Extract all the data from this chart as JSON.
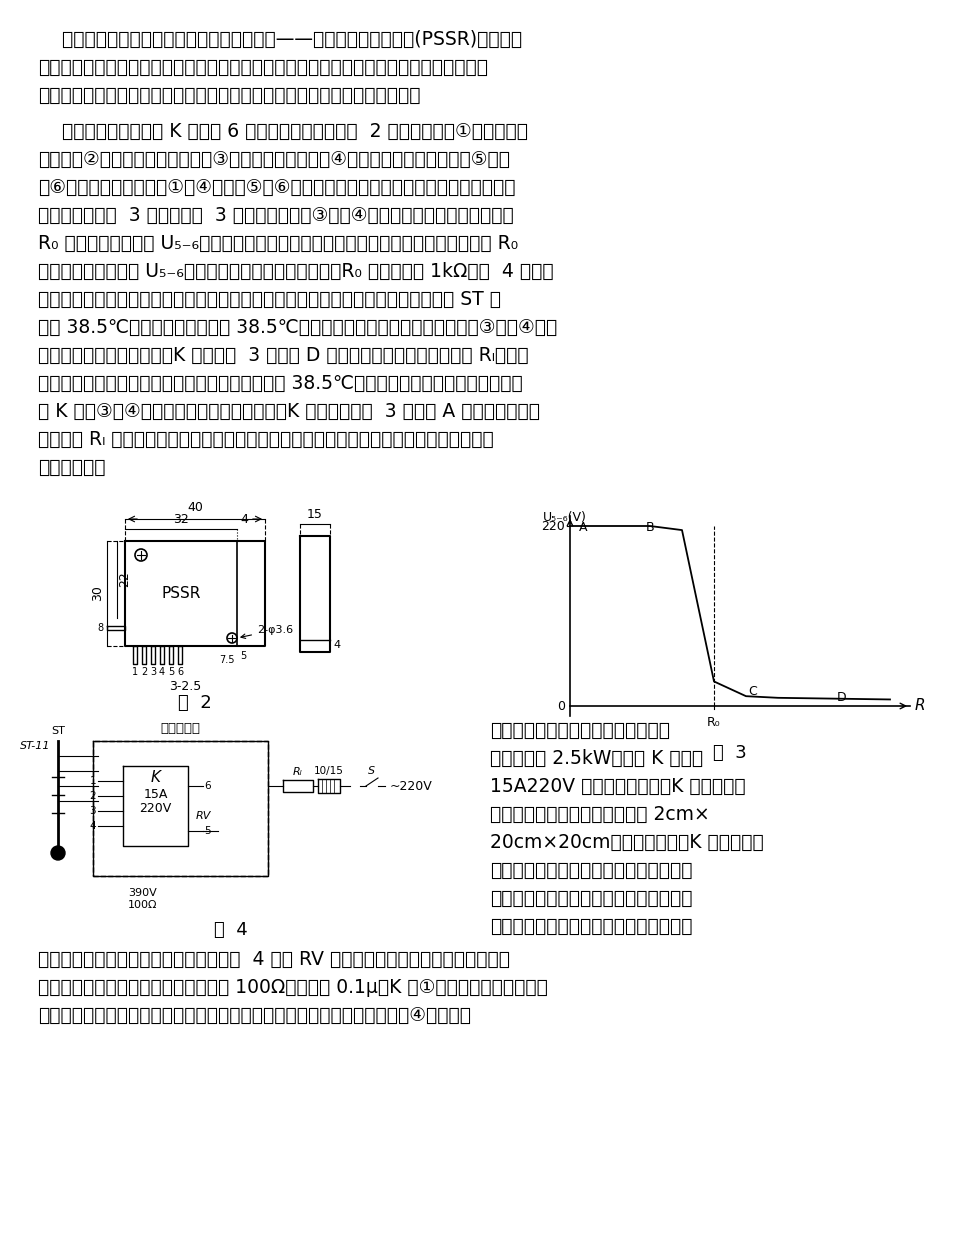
{
  "background_color": "#ffffff",
  "text_color": "#000000",
  "paragraphs": [
    "    该恒温控制器由于采用了一个新型电子元件——交流参数固态继电器(PSSR)，使得电路大为简化，但电路性能不错。该控制器动作灵敏、切换速度高，与之配套的电接点水银温度计的接点不容易老化、安装更换简单。这种恒温控制器适宜用在孵化箱中。",
    "    交流参数固态继电器 K 是一种 6 端固体元件，外型如图  2 所示。图中第①脚是有源驱动端，第②脚是负功率驱动端，第③脚是无源驱动端，第④脚是控制端的公共端，第⑤脚、第⑥脚是输出开关端。第①～④脚与第⑤、⑥脚之间相互电隔离。交流参数固态继电器的典型控制特性如图  3 所示。从图  3 可以看出，当第③、第④脚外接的无源元件的电阻小于 R₀ 时，输出端的电压 U₅₋₆等于电源电压，相当于输出开关断开；当外接电阻阻值大于 R₀时，输出开关端压降 U₅₋₆等于零，相当于输出开关接通。R₀ 的典型值约 1kΩ。图  4 是恒温控制器使用时的连线图，以孵鸡为例，恒温控制过程如下：通常将电接点水银温度计 ST 预置在 38.5℃，当孵箱内温度低于 38.5℃时，水银电接点是断开的，相当于第③、第④脚之间的外接电阻阻值无穷大，K 工作在图  3 曲线上 D 点以远，输出开关接通，负载 Rₗ（电炉丝）接通电源，箱内温度升高；当箱内温度上升到 38.5℃时，水银温度计电接点闭合，相当于 K 的第③、④脚之间的外接电阻阻值为零，K 此时工作在图  3 曲线的 A 点，输出开关断开，负载 Rₗ 失电停止加热，箱内温度降低。这样周而复始，就会将箱内温度控制在给定的温度范围内。"
  ],
  "figure2_caption": "图  2",
  "figure3_caption": "图  3",
  "figure4_caption": "图  4",
  "bottom_paragraphs": [
    "如果是一万只鸡蛋的电孵箱，加热器的功率需约 2.5kW，因此 K 要选择 15A220V 规格的。安装时，K 应配足够大的散热器，散热器尺寸不得小于 2cm×20cm×20cm，材料为铝板。K 的底部是散热片，有些产品散热片与内部相通，因此在与外加散热器相互压接时，中间需垫上起电绝缘作用的云母片或聚脂薄片。也可",
    "以视情况采用金属结构件作为散热器。图  4 中的 RV 为一个压敏电阻，如果没有此元件，也可用阻容吸收回路代替，通常电阻取 100Ω，电容取 0.1μ。K 第①脚的灵敏度很高，悬空时很容易受外界感应信号的干扰，因此不使用这一脚时应将此脚与公共端第④脚短接。"
  ]
}
